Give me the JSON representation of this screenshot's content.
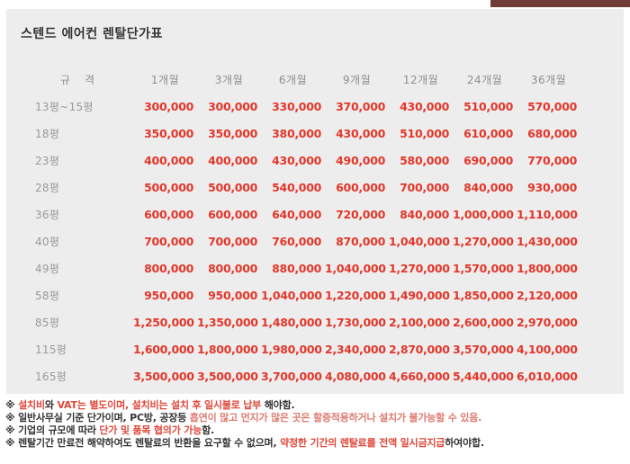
{
  "title": "스텐드 에어컨 렌탈단가표",
  "colors": {
    "panel_bg": "#ededed",
    "price_red": "#e2372b",
    "note_red": "#e0473a",
    "note_red_light": "#e07a70",
    "text_dark": "#333333",
    "label_gray": "#9a9a9a",
    "header_gray": "#8e8e8e",
    "accent_bar": "#703a36"
  },
  "table": {
    "size_header": "규 격",
    "period_headers": [
      "1개월",
      "3개월",
      "6개월",
      "9개월",
      "12개월",
      "24개월",
      "36개월"
    ],
    "rows": [
      {
        "size": "13평~15평",
        "prices": [
          "300,000",
          "300,000",
          "330,000",
          "370,000",
          "430,000",
          "510,000",
          "570,000"
        ]
      },
      {
        "size": "18평",
        "prices": [
          "350,000",
          "350,000",
          "380,000",
          "430,000",
          "510,000",
          "610,000",
          "680,000"
        ]
      },
      {
        "size": "23평",
        "prices": [
          "400,000",
          "400,000",
          "430,000",
          "490,000",
          "580,000",
          "690,000",
          "770,000"
        ]
      },
      {
        "size": "28평",
        "prices": [
          "500,000",
          "500,000",
          "540,000",
          "600,000",
          "700,000",
          "840,000",
          "930,000"
        ]
      },
      {
        "size": "36평",
        "prices": [
          "600,000",
          "600,000",
          "640,000",
          "720,000",
          "840,000",
          "1,000,000",
          "1,110,000"
        ]
      },
      {
        "size": "40평",
        "prices": [
          "700,000",
          "700,000",
          "760,000",
          "870,000",
          "1,040,000",
          "1,270,000",
          "1,430,000"
        ]
      },
      {
        "size": "49평",
        "prices": [
          "800,000",
          "800,000",
          "880,000",
          "1,040,000",
          "1,270,000",
          "1,570,000",
          "1,800,000"
        ]
      },
      {
        "size": "58평",
        "prices": [
          "950,000",
          "950,000",
          "1,040,000",
          "1,220,000",
          "1,490,000",
          "1,850,000",
          "2,120,000"
        ]
      },
      {
        "size": "85평",
        "prices": [
          "1,250,000",
          "1,350,000",
          "1,480,000",
          "1,730,000",
          "2,100,000",
          "2,600,000",
          "2,970,000"
        ]
      },
      {
        "size": "115평",
        "prices": [
          "1,600,000",
          "1,800,000",
          "1,980,000",
          "2,340,000",
          "2,870,000",
          "3,570,000",
          "4,100,000"
        ]
      },
      {
        "size": "165평",
        "prices": [
          "3,500,000",
          "3,500,000",
          "3,700,000",
          "4,080,000",
          "4,660,000",
          "5,440,000",
          "6,010,000"
        ]
      }
    ]
  },
  "notes": [
    {
      "segments": [
        {
          "text": "※ ",
          "color": "dark"
        },
        {
          "text": "설치비",
          "color": "red"
        },
        {
          "text": "와 ",
          "color": "dark"
        },
        {
          "text": "VAT는 별도이며, 설치비는 설치 후 일시불로 납부",
          "color": "red"
        },
        {
          "text": " 해야함.",
          "color": "dark"
        }
      ]
    },
    {
      "segments": [
        {
          "text": "※ 일반사무실 기준 단가이며, PC방, 공장등 ",
          "color": "dark"
        },
        {
          "text": "흡연이 많고 먼지가 많은 곳은 할증적용하거나 설치가 불가능할 수 있음.",
          "color": "red_light"
        }
      ]
    },
    {
      "segments": [
        {
          "text": "※ 기업의 규모에 따라 ",
          "color": "dark"
        },
        {
          "text": "단가 및 품목 협의가 가능",
          "color": "red"
        },
        {
          "text": "함.",
          "color": "dark"
        }
      ]
    },
    {
      "segments": [
        {
          "text": "※ 렌탈기간 만료전 해약하여도 렌탈료의 반환을 요구할 수 없으며, ",
          "color": "dark"
        },
        {
          "text": "약정한 기간의 렌탈료를 전액 일시금지급",
          "color": "red"
        },
        {
          "text": "하여야합.",
          "color": "dark"
        }
      ]
    }
  ]
}
